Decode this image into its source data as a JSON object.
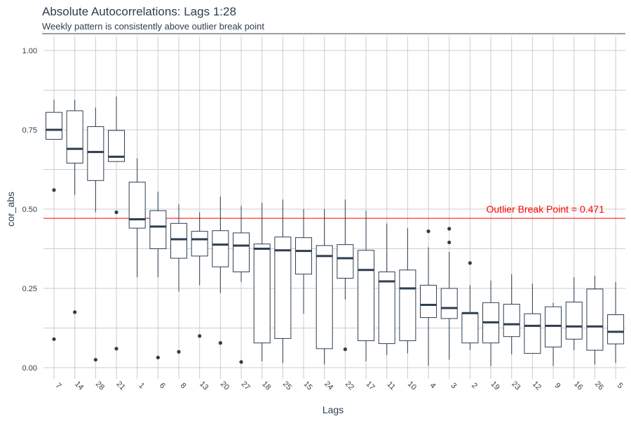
{
  "chart_data": {
    "type": "boxplot",
    "title": "Absolute Autocorrelations: Lags 1:28",
    "subtitle": "Weekly pattern is consistently above outlier break point",
    "xlabel": "Lags",
    "ylabel": "cor_abs",
    "ylim": [
      0,
      1.05
    ],
    "yticks": [
      0.0,
      0.25,
      0.5,
      0.75,
      1.0
    ],
    "ytick_labels": [
      "0.00",
      "0.25",
      "0.50",
      "0.75",
      "1.00"
    ],
    "grid": true,
    "reference_line": {
      "value": 0.471,
      "label": "Outlier Break Point = 0.471",
      "color": "#ff0000"
    },
    "colors": {
      "box_fill": "#ffffff",
      "box_stroke": "#2c3e50",
      "median": "#2c3e50",
      "grid": "#cccccc",
      "axis_text": "#2c3e50"
    },
    "categories": [
      "7",
      "14",
      "28",
      "21",
      "1",
      "6",
      "8",
      "13",
      "20",
      "27",
      "18",
      "25",
      "15",
      "24",
      "22",
      "17",
      "11",
      "10",
      "4",
      "3",
      "2",
      "19",
      "23",
      "12",
      "9",
      "16",
      "26",
      "5"
    ],
    "boxes": [
      {
        "lag": "7",
        "whisker_low": 0.72,
        "q1": 0.72,
        "median": 0.75,
        "q3": 0.805,
        "whisker_high": 0.845,
        "outliers": [
          0.56,
          0.09
        ]
      },
      {
        "lag": "14",
        "whisker_low": 0.545,
        "q1": 0.645,
        "median": 0.69,
        "q3": 0.81,
        "whisker_high": 0.845,
        "outliers": [
          0.175
        ]
      },
      {
        "lag": "28",
        "whisker_low": 0.49,
        "q1": 0.59,
        "median": 0.68,
        "q3": 0.76,
        "whisker_high": 0.82,
        "outliers": [
          0.025
        ]
      },
      {
        "lag": "21",
        "whisker_low": 0.65,
        "q1": 0.65,
        "median": 0.665,
        "q3": 0.748,
        "whisker_high": 0.855,
        "outliers": [
          0.49,
          0.06
        ]
      },
      {
        "lag": "1",
        "whisker_low": 0.285,
        "q1": 0.44,
        "median": 0.468,
        "q3": 0.585,
        "whisker_high": 0.66,
        "outliers": []
      },
      {
        "lag": "6",
        "whisker_low": 0.285,
        "q1": 0.375,
        "median": 0.445,
        "q3": 0.495,
        "whisker_high": 0.555,
        "outliers": [
          0.032
        ]
      },
      {
        "lag": "8",
        "whisker_low": 0.24,
        "q1": 0.345,
        "median": 0.405,
        "q3": 0.455,
        "whisker_high": 0.515,
        "outliers": [
          0.05
        ]
      },
      {
        "lag": "13",
        "whisker_low": 0.26,
        "q1": 0.352,
        "median": 0.405,
        "q3": 0.43,
        "whisker_high": 0.49,
        "outliers": [
          0.1
        ]
      },
      {
        "lag": "20",
        "whisker_low": 0.235,
        "q1": 0.318,
        "median": 0.388,
        "q3": 0.432,
        "whisker_high": 0.54,
        "outliers": [
          0.078
        ]
      },
      {
        "lag": "27",
        "whisker_low": 0.27,
        "q1": 0.302,
        "median": 0.385,
        "q3": 0.425,
        "whisker_high": 0.51,
        "outliers": [
          0.018
        ]
      },
      {
        "lag": "18",
        "whisker_low": 0.02,
        "q1": 0.078,
        "median": 0.375,
        "q3": 0.39,
        "whisker_high": 0.52,
        "outliers": []
      },
      {
        "lag": "25",
        "whisker_low": 0.015,
        "q1": 0.092,
        "median": 0.37,
        "q3": 0.412,
        "whisker_high": 0.53,
        "outliers": []
      },
      {
        "lag": "15",
        "whisker_low": 0.17,
        "q1": 0.295,
        "median": 0.368,
        "q3": 0.41,
        "whisker_high": 0.5,
        "outliers": []
      },
      {
        "lag": "24",
        "whisker_low": 0.01,
        "q1": 0.06,
        "median": 0.352,
        "q3": 0.385,
        "whisker_high": 0.5,
        "outliers": []
      },
      {
        "lag": "22",
        "whisker_low": 0.215,
        "q1": 0.282,
        "median": 0.345,
        "q3": 0.388,
        "whisker_high": 0.53,
        "outliers": [
          0.058
        ]
      },
      {
        "lag": "17",
        "whisker_low": 0.02,
        "q1": 0.085,
        "median": 0.308,
        "q3": 0.37,
        "whisker_high": 0.495,
        "outliers": []
      },
      {
        "lag": "11",
        "whisker_low": 0.04,
        "q1": 0.076,
        "median": 0.272,
        "q3": 0.302,
        "whisker_high": 0.455,
        "outliers": []
      },
      {
        "lag": "10",
        "whisker_low": 0.045,
        "q1": 0.085,
        "median": 0.25,
        "q3": 0.308,
        "whisker_high": 0.44,
        "outliers": []
      },
      {
        "lag": "4",
        "whisker_low": 0.005,
        "q1": 0.158,
        "median": 0.198,
        "q3": 0.26,
        "whisker_high": 0.38,
        "outliers": [
          0.43
        ]
      },
      {
        "lag": "3",
        "whisker_low": 0.025,
        "q1": 0.155,
        "median": 0.188,
        "q3": 0.25,
        "whisker_high": 0.365,
        "outliers": [
          0.438,
          0.395
        ]
      },
      {
        "lag": "2",
        "whisker_low": 0.055,
        "q1": 0.078,
        "median": 0.172,
        "q3": 0.172,
        "whisker_high": 0.26,
        "outliers": [
          0.33
        ]
      },
      {
        "lag": "19",
        "whisker_low": 0.005,
        "q1": 0.078,
        "median": 0.143,
        "q3": 0.205,
        "whisker_high": 0.275,
        "outliers": []
      },
      {
        "lag": "23",
        "whisker_low": 0.042,
        "q1": 0.098,
        "median": 0.137,
        "q3": 0.2,
        "whisker_high": 0.295,
        "outliers": []
      },
      {
        "lag": "12",
        "whisker_low": 0.045,
        "q1": 0.045,
        "median": 0.132,
        "q3": 0.17,
        "whisker_high": 0.265,
        "outliers": []
      },
      {
        "lag": "9",
        "whisker_low": 0.005,
        "q1": 0.065,
        "median": 0.132,
        "q3": 0.192,
        "whisker_high": 0.205,
        "outliers": []
      },
      {
        "lag": "16",
        "whisker_low": 0.055,
        "q1": 0.09,
        "median": 0.13,
        "q3": 0.207,
        "whisker_high": 0.285,
        "outliers": []
      },
      {
        "lag": "26",
        "whisker_low": 0.01,
        "q1": 0.055,
        "median": 0.13,
        "q3": 0.248,
        "whisker_high": 0.29,
        "outliers": []
      },
      {
        "lag": "5",
        "whisker_low": 0.015,
        "q1": 0.075,
        "median": 0.113,
        "q3": 0.167,
        "whisker_high": 0.27,
        "outliers": []
      }
    ]
  }
}
